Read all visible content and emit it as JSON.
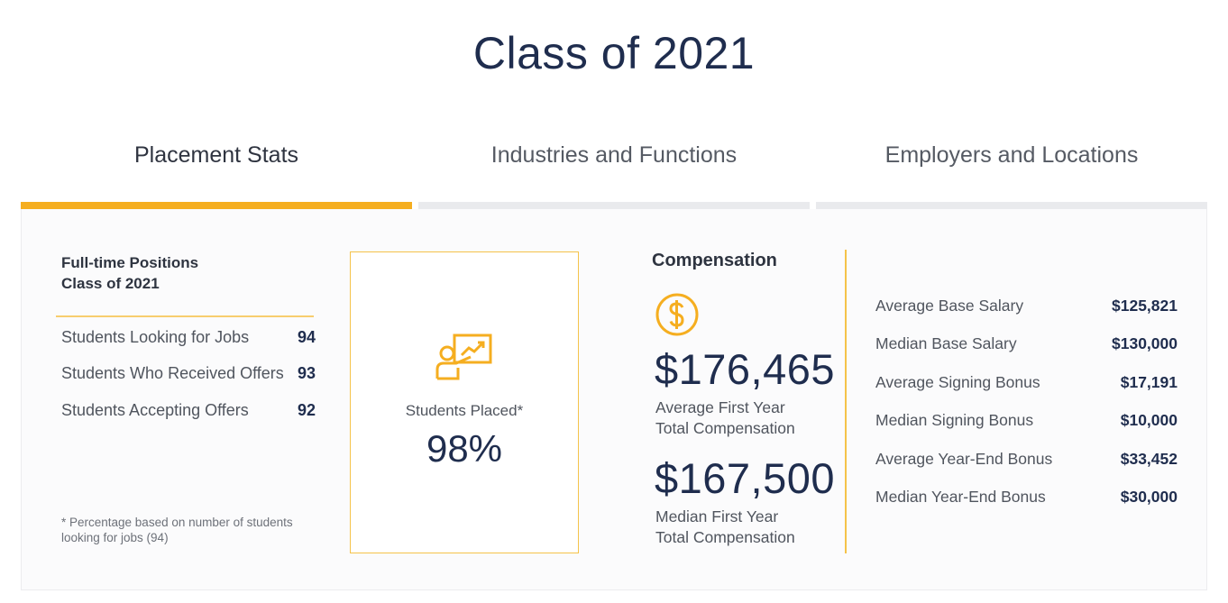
{
  "page": {
    "title": "Class of 2021"
  },
  "tabs": [
    {
      "label": "Placement Stats",
      "active": true
    },
    {
      "label": "Industries and Functions",
      "active": false
    },
    {
      "label": "Employers and Locations",
      "active": false
    }
  ],
  "positions": {
    "heading_line1": "Full-time Positions",
    "heading_line2": "Class of 2021",
    "rows": [
      {
        "label": "Students Looking for Jobs",
        "value": "94"
      },
      {
        "label": "Students Who Received Offers",
        "value": "93"
      },
      {
        "label": "Students Accepting Offers",
        "value": "92"
      }
    ],
    "footnote_line1": "* Percentage based on number of students",
    "footnote_line2": "looking for jobs (94)"
  },
  "placed": {
    "icon": "presentation-chart-icon",
    "label": "Students Placed*",
    "value": "98%"
  },
  "compensation": {
    "heading": "Compensation",
    "icon": "dollar-circle-icon",
    "average": {
      "value": "$176,465",
      "label_line1": "Average First Year",
      "label_line2": "Total Compensation"
    },
    "median": {
      "value": "$167,500",
      "label_line1": "Median First Year",
      "label_line2": "Total Compensation"
    }
  },
  "salary": {
    "rows": [
      {
        "label": "Average Base Salary",
        "value": "$125,821"
      },
      {
        "label": "Median Base Salary",
        "value": "$130,000"
      },
      {
        "label": "Average Signing Bonus",
        "value": "$17,191"
      },
      {
        "label": "Median Signing Bonus",
        "value": "$10,000"
      },
      {
        "label": "Average Year-End Bonus",
        "value": "$33,452"
      },
      {
        "label": "Median Year-End Bonus",
        "value": "$30,000"
      }
    ]
  },
  "colors": {
    "accent": "#f5ae20",
    "navy": "#1f2d4e",
    "inactive_tab": "#e9eaed"
  }
}
